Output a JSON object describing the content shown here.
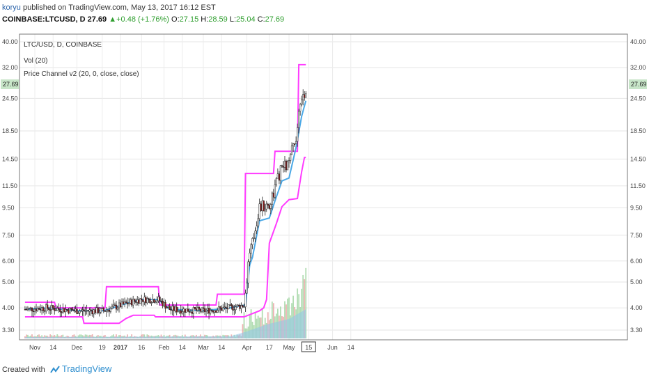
{
  "header": {
    "user": "koryu",
    "published": "published on TradingView.com, May 13, 2017 16:12 EST"
  },
  "ohlc": {
    "symbol": "COINBASE:LTCUSD, D",
    "last": "27.69",
    "change": "+0.48 (+1.76%)",
    "o_label": "O:",
    "o": "27.15",
    "h_label": "H:",
    "h": "28.59",
    "l_label": "L:",
    "l": "25.04",
    "c_label": "C:",
    "c": "27.69",
    "up_color": "#2e9e2e"
  },
  "legend": {
    "line1": "LTC/USD, D, COINBASE",
    "line2": "Vol (20)",
    "line3": "Price Channel v2 (20, 0, close, close)"
  },
  "footer": {
    "created": "Created with",
    "brand": "TradingView",
    "logo_icon": "tradingview-logo-icon"
  },
  "colors": {
    "up": "#ffffff",
    "down": "#8b1a1a",
    "channel_upper": "#ff3bff",
    "channel_lower": "#ff3bff",
    "channel_mid": "#4aa8e6",
    "vol_up": "#9fd4a0",
    "vol_down": "#e8a0a0",
    "vol_ma": "#8fc4ea",
    "last_price_bg": "#c8e6c9"
  },
  "chart_data": {
    "type": "candlestick",
    "y_scale": "log",
    "yticks": [
      "40.00",
      "32.00",
      "24.50",
      "18.50",
      "14.50",
      "11.50",
      "9.50",
      "7.50",
      "6.00",
      "5.00",
      "4.00",
      "3.30"
    ],
    "last_price_label": "27.69",
    "xticks": [
      "Nov",
      "14",
      "Dec",
      "19",
      "2017",
      "16",
      "Feb",
      "14",
      "Mar",
      "14",
      "Apr",
      "17",
      "May",
      "15",
      "Jun",
      "14"
    ],
    "x_highlight": "15",
    "series": [
      {
        "name": "Price Channel upper",
        "values": [
          [
            "2016-10-25",
            4.2
          ],
          [
            "2016-11-15",
            4.2
          ],
          [
            "2016-11-16",
            4.0
          ],
          [
            "2016-12-21",
            4.0
          ],
          [
            "2016-12-22",
            4.8
          ],
          [
            "2017-01-28",
            4.8
          ],
          [
            "2017-01-29",
            4.1
          ],
          [
            "2017-03-10",
            4.1
          ],
          [
            "2017-03-11",
            4.5
          ],
          [
            "2017-03-30",
            4.5
          ],
          [
            "2017-03-31",
            12.8
          ],
          [
            "2017-04-20",
            12.8
          ],
          [
            "2017-04-21",
            15.5
          ],
          [
            "2017-05-07",
            15.5
          ],
          [
            "2017-05-08",
            32.8
          ],
          [
            "2017-05-13",
            32.8
          ]
        ]
      },
      {
        "name": "Price Channel lower",
        "values": [
          [
            "2016-10-25",
            3.7
          ],
          [
            "2016-12-05",
            3.7
          ],
          [
            "2016-12-06",
            3.5
          ],
          [
            "2016-12-31",
            3.5
          ],
          [
            "2017-01-05",
            3.65
          ],
          [
            "2017-01-10",
            3.75
          ],
          [
            "2017-01-25",
            3.75
          ],
          [
            "2017-01-26",
            3.7
          ],
          [
            "2017-03-30",
            3.7
          ],
          [
            "2017-04-10",
            3.9
          ],
          [
            "2017-04-13",
            4.0
          ],
          [
            "2017-04-15",
            4.3
          ],
          [
            "2017-04-17",
            7.0
          ],
          [
            "2017-04-22",
            8.3
          ],
          [
            "2017-04-26",
            9.6
          ],
          [
            "2017-05-01",
            10.2
          ],
          [
            "2017-05-07",
            10.3
          ],
          [
            "2017-05-10",
            13.0
          ],
          [
            "2017-05-12",
            14.7
          ],
          [
            "2017-05-13",
            14.7
          ]
        ]
      },
      {
        "name": "Price Channel basis",
        "values": [
          [
            "2016-10-25",
            3.95
          ],
          [
            "2016-11-10",
            4.0
          ],
          [
            "2016-12-01",
            3.9
          ],
          [
            "2016-12-20",
            3.9
          ],
          [
            "2017-01-05",
            4.15
          ],
          [
            "2017-01-15",
            4.3
          ],
          [
            "2017-01-28",
            4.3
          ],
          [
            "2017-02-05",
            3.95
          ],
          [
            "2017-03-01",
            3.9
          ],
          [
            "2017-03-20",
            4.0
          ],
          [
            "2017-03-31",
            4.1
          ],
          [
            "2017-04-03",
            5.8
          ],
          [
            "2017-04-05",
            6.2
          ],
          [
            "2017-04-10",
            8.5
          ],
          [
            "2017-04-17",
            8.7
          ],
          [
            "2017-04-21",
            10.1
          ],
          [
            "2017-04-26",
            12.0
          ],
          [
            "2017-05-01",
            12.3
          ],
          [
            "2017-05-06",
            16.0
          ],
          [
            "2017-05-10",
            21.0
          ],
          [
            "2017-05-13",
            24.0
          ]
        ]
      }
    ]
  }
}
